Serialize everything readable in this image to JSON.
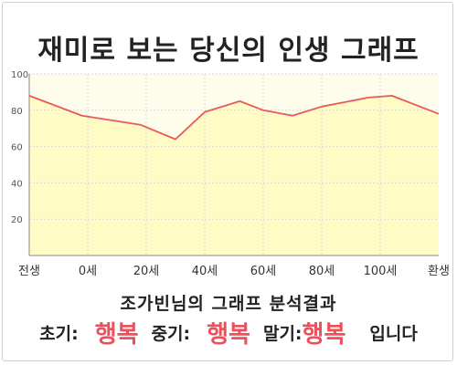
{
  "title": "재미로 보는 당신의 인생 그래프",
  "result": {
    "subtitle": "조가빈님의 그래프 분석결과",
    "early_label": "초기:",
    "early_value": "행복",
    "middle_label": "중기:",
    "middle_value": "행복",
    "late_label": "말기:",
    "late_value": "행복",
    "ending": "입니다"
  },
  "chart_data": {
    "type": "area",
    "x_categories": [
      "전생",
      "0세",
      "20세",
      "40세",
      "60세",
      "80세",
      "100세",
      "환생"
    ],
    "points": [
      {
        "x": 0,
        "y": 88
      },
      {
        "x": 0.9,
        "y": 77
      },
      {
        "x": 1.9,
        "y": 72
      },
      {
        "x": 2.5,
        "y": 64
      },
      {
        "x": 3.0,
        "y": 79
      },
      {
        "x": 3.6,
        "y": 85
      },
      {
        "x": 4.0,
        "y": 80
      },
      {
        "x": 4.5,
        "y": 77
      },
      {
        "x": 5.0,
        "y": 82
      },
      {
        "x": 5.8,
        "y": 87
      },
      {
        "x": 6.2,
        "y": 88
      },
      {
        "x": 7.0,
        "y": 78
      }
    ],
    "ylim": [
      0,
      100
    ],
    "y_ticks": [
      20,
      40,
      60,
      80,
      100
    ],
    "grid": true,
    "colors": {
      "line": "#e8595f",
      "fill": "#fefcc4",
      "plot_background": "#fefdeb",
      "grid": "#d9d9d9",
      "highlight": "#ef4f5a"
    }
  }
}
